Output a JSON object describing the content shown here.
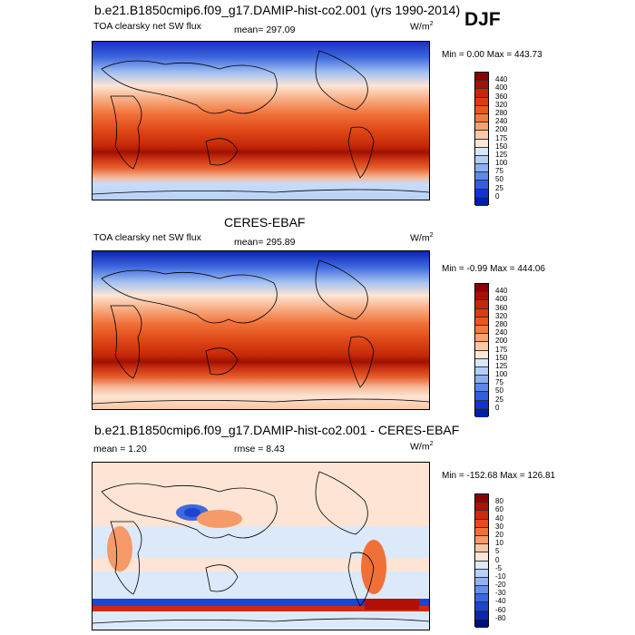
{
  "main_title": "b.e21.B1850cmip6.f09_g17.DAMIP-hist-co2.001 (yrs 1990-2014)",
  "season": "DJF",
  "panels": [
    {
      "title": "",
      "variable": "TOA clearsky net SW flux",
      "mean_label": "mean= 297.09",
      "rmse_label": "",
      "units": "W/m",
      "units_exp": "2",
      "minmax": "Min =   0.00 Max = 443.73"
    },
    {
      "title": "CERES-EBAF",
      "variable": "TOA clearsky net SW flux",
      "mean_label": "mean= 295.89",
      "rmse_label": "",
      "units": "W/m",
      "units_exp": "2",
      "minmax": "Min =  -0.99 Max = 444.06"
    },
    {
      "title": "b.e21.B1850cmip6.f09_g17.DAMIP-hist-co2.001 - CERES-EBAF",
      "variable": "",
      "mean_label": "mean =   1.20",
      "rmse_label": "rmse =   8.43",
      "units": "W/m",
      "units_exp": "2",
      "minmax": "Min = -152.68 Max = 126.81"
    }
  ],
  "colorbars": {
    "flux": {
      "labels": [
        "440",
        "400",
        "360",
        "320",
        "280",
        "240",
        "200",
        "175",
        "150",
        "125",
        "100",
        "75",
        "50",
        "25",
        "0"
      ],
      "colors": [
        "#8b0000",
        "#a81004",
        "#c42808",
        "#dc3c10",
        "#ea5820",
        "#f27b40",
        "#f8a070",
        "#fbc8a8",
        "#fde6d8",
        "#d8e8fa",
        "#b3cff5",
        "#8bb0f0",
        "#5d88ea",
        "#2f5fe0",
        "#1233d4",
        "#001fa8"
      ]
    },
    "diff": {
      "labels": [
        "80",
        "60",
        "40",
        "30",
        "20",
        "10",
        "5",
        "0",
        "-5",
        "-10",
        "-20",
        "-30",
        "-40",
        "-60",
        "-80"
      ],
      "colors": [
        "#8b0000",
        "#b01005",
        "#d02a0c",
        "#e84a1a",
        "#f07038",
        "#f59a68",
        "#f9c6a4",
        "#fde4d4",
        "#dbe9fb",
        "#b8d2f6",
        "#8fb4f0",
        "#6690e8",
        "#3e69de",
        "#1b44d0",
        "#0a27b0",
        "#00107a"
      ]
    }
  }
}
